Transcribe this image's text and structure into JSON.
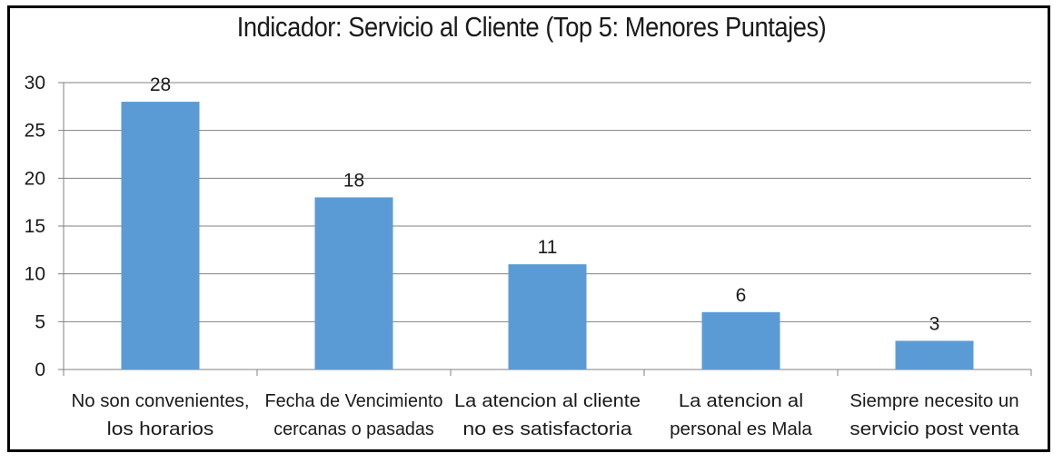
{
  "chart_data": {
    "type": "bar",
    "title": "Indicador: Servicio al Cliente (Top 5: Menores Puntajes)",
    "categories": [
      [
        "No son convenientes,",
        "los horarios"
      ],
      [
        "Fecha de Vencimiento",
        "cercanas o pasadas"
      ],
      [
        "La atencion al cliente",
        "no es satisfactoria"
      ],
      [
        "La atencion al",
        "personal es Mala"
      ],
      [
        "Siempre necesito un",
        "servicio post venta"
      ]
    ],
    "values": [
      28,
      18,
      11,
      6,
      3
    ],
    "data_labels": [
      "28",
      "18",
      "11",
      "6",
      "3"
    ],
    "ylim": [
      0,
      30
    ],
    "yticks": [
      0,
      5,
      10,
      15,
      20,
      25,
      30
    ],
    "grid": true,
    "legend": "none",
    "colors": {
      "bar": "#5b9bd5",
      "grid": "#808080",
      "axis": "#808080",
      "text": "#1a1a1a"
    }
  }
}
